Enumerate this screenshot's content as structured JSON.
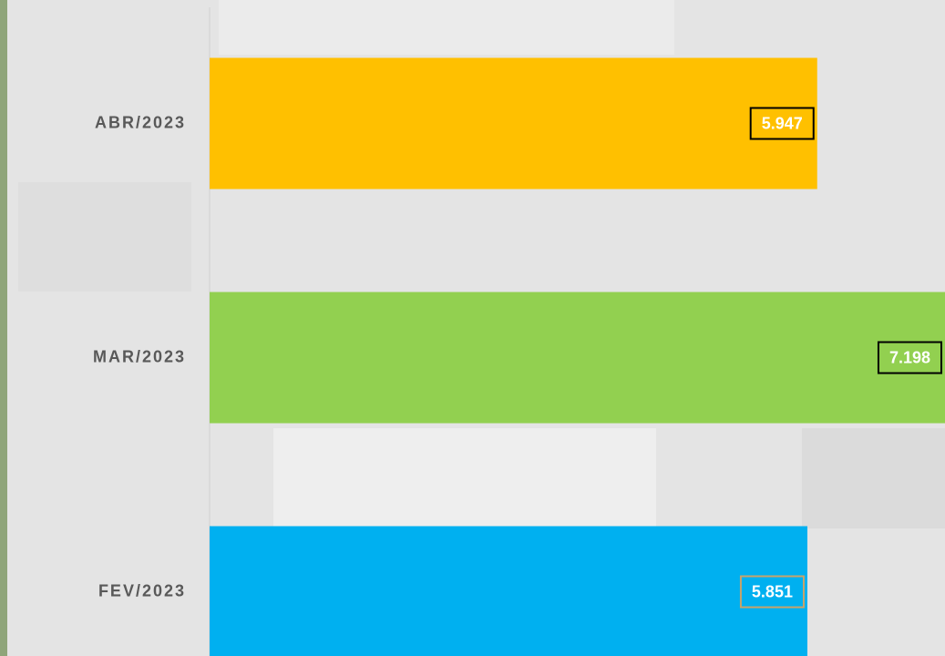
{
  "chart_data": {
    "type": "hbar",
    "categories": [
      "ABR/2023",
      "MAR/2023",
      "FEV/2023"
    ],
    "values": [
      5947,
      7198,
      5851
    ],
    "value_labels": [
      "5.947",
      "7.198",
      "5.851"
    ],
    "colors": [
      "#ffc000",
      "#92d050",
      "#00b0f0"
    ],
    "label_border_colors": [
      "#000000",
      "#000000",
      "#c9a36a"
    ],
    "xlim": [
      0,
      7198
    ]
  }
}
